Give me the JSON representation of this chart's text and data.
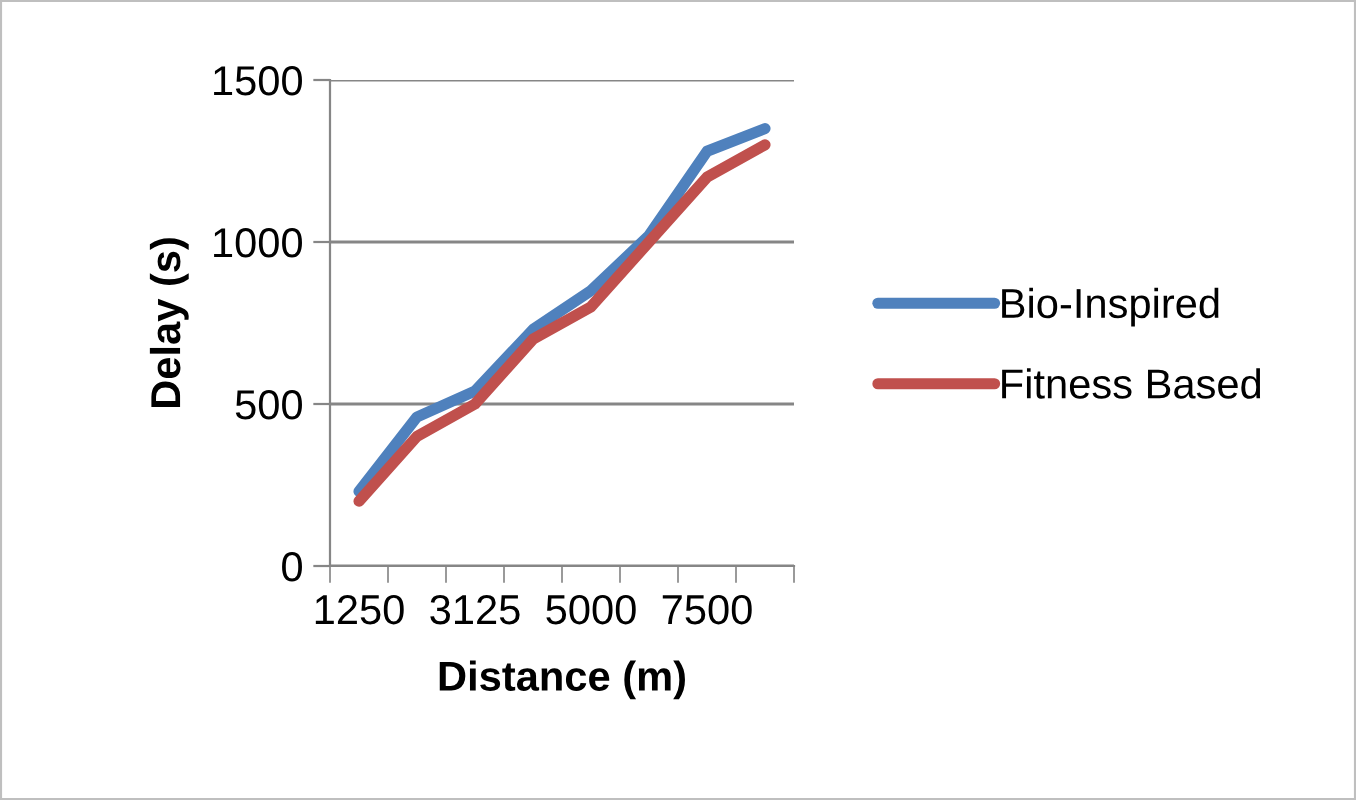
{
  "chart_data": {
    "type": "line",
    "xlabel": "Distance (m)",
    "ylabel": "Delay (s)",
    "categories": [
      "1250",
      null,
      "3125",
      null,
      "5000",
      null,
      "7500",
      null
    ],
    "series": [
      {
        "name": "Bio-Inspired",
        "color": "#4f81bd",
        "values": [
          230,
          460,
          540,
          730,
          850,
          1020,
          1280,
          1350
        ]
      },
      {
        "name": "Fitness Based",
        "color": "#c0504d",
        "values": [
          200,
          400,
          500,
          700,
          800,
          1000,
          1200,
          1300
        ]
      }
    ],
    "ylim": [
      0,
      1500
    ],
    "yticks": [
      0,
      500,
      1000,
      1500
    ],
    "grid": "y",
    "legend": "right",
    "marker": "none",
    "line_style": "solid"
  }
}
